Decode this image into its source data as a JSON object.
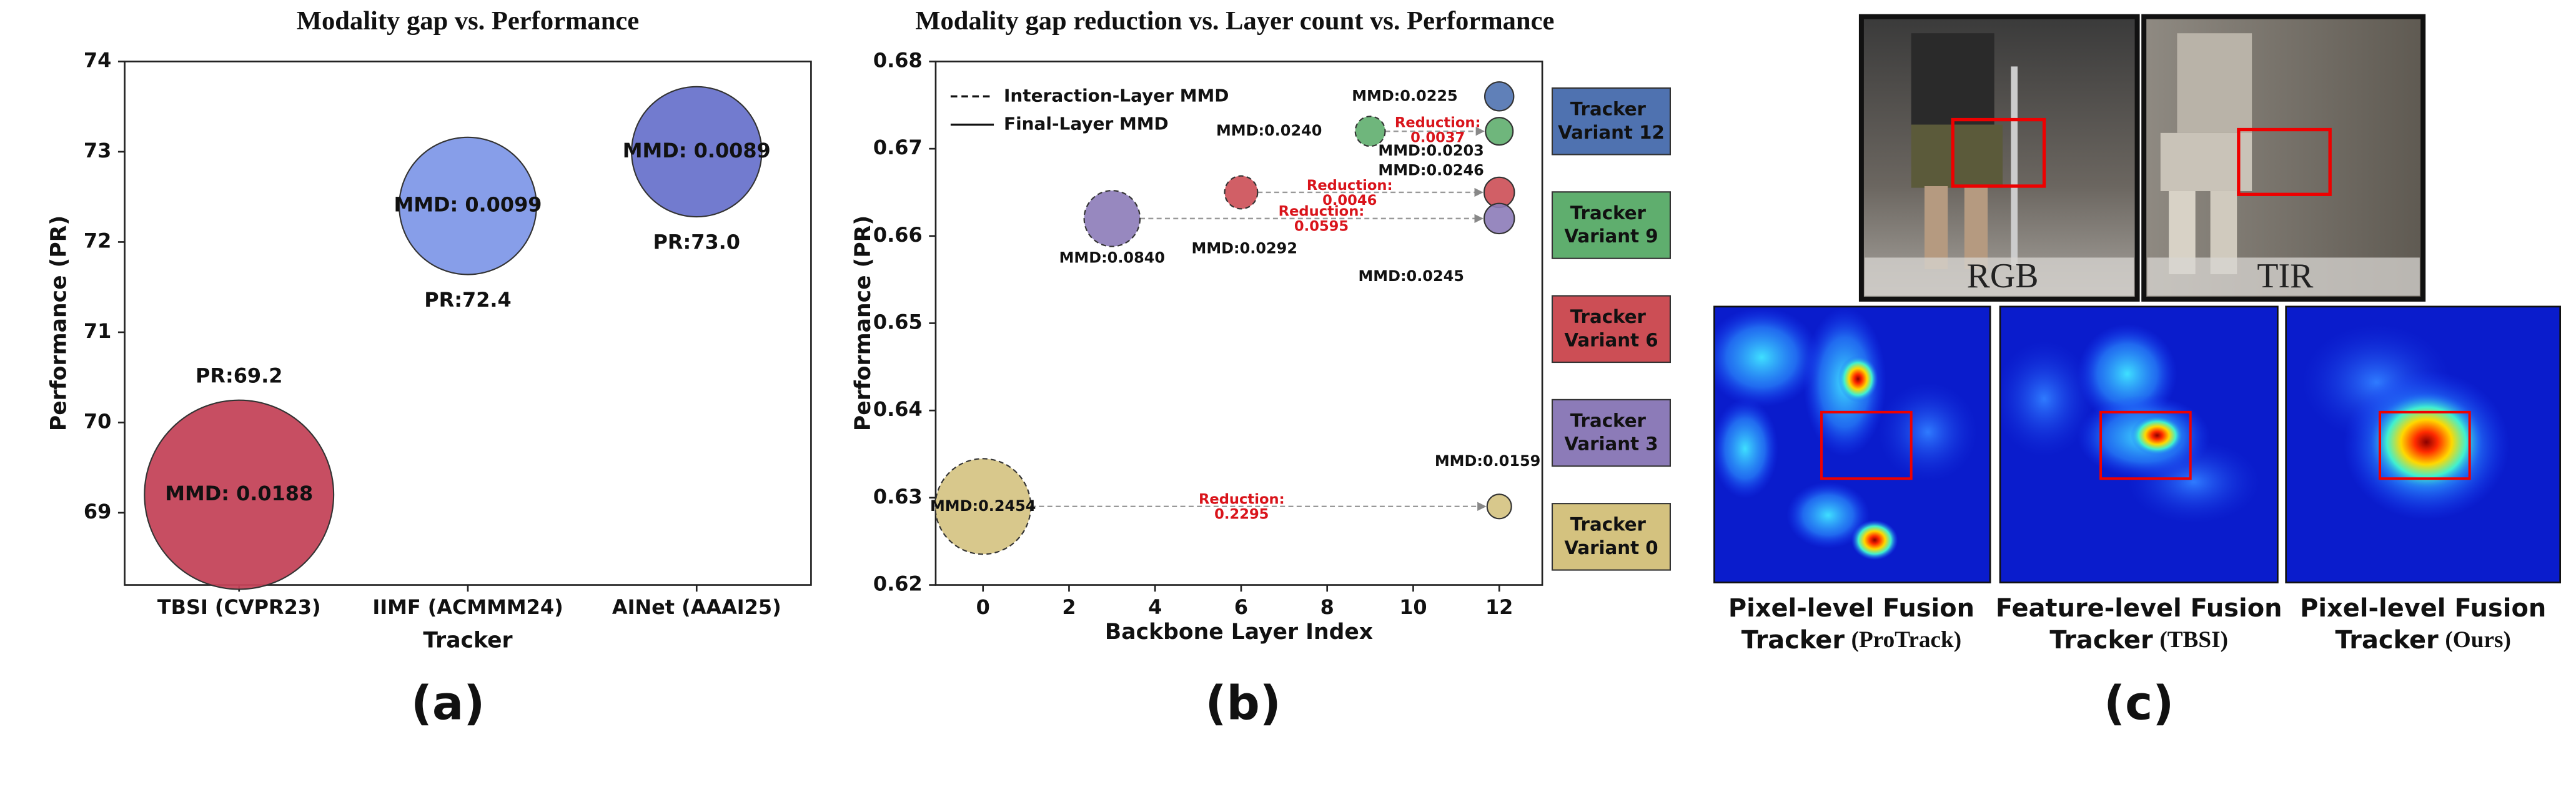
{
  "chart_data": [
    {
      "type": "bubble",
      "title": "Modality gap vs. Performance",
      "x_label": "Tracker",
      "y_label": "Performance (PR)",
      "panel_label": "(a)",
      "categories": [
        "TBSI (CVPR23)",
        "IIMF (ACMMM24)",
        "AINet (AAAI25)"
      ],
      "values": [
        69.2,
        72.4,
        73.0
      ],
      "value_labels": [
        "PR:69.2",
        "PR:72.4",
        "PR:73.0"
      ],
      "sizes": [
        0.0188,
        0.0099,
        0.0089
      ],
      "size_labels": [
        "MMD: 0.0188",
        "MMD: 0.0099",
        "MMD: 0.0089"
      ],
      "colors": [
        "#c4445a",
        "#8199e8",
        "#6a74cc"
      ],
      "ylim": [
        68.2,
        74
      ],
      "yticks": [
        69,
        70,
        71,
        72,
        73,
        74
      ],
      "grid": false
    },
    {
      "type": "scatter",
      "title": "Modality gap reduction vs. Layer count vs. Performance",
      "x_label": "Backbone Layer Index",
      "y_label": "Performance (PR)",
      "panel_label": "(b)",
      "reduction_caption": "Reduction:",
      "line_legend": [
        {
          "label": "Interaction-Layer MMD",
          "dashed": true
        },
        {
          "label": "Final-Layer MMD",
          "dashed": false
        }
      ],
      "series": [
        {
          "name": "Tracker Variant 12",
          "color": "#4f72b0",
          "x": [
            12
          ],
          "values": [
            0.676
          ],
          "sizes": [
            0.0225
          ],
          "size_labels": [
            "MMD:0.0225"
          ]
        },
        {
          "name": "Tracker Variant 9",
          "color": "#5fae6e",
          "x": [
            9,
            12
          ],
          "values": [
            0.672,
            0.672
          ],
          "sizes": [
            0.024,
            0.0203
          ],
          "size_labels": [
            "MMD:0.0240",
            "MMD:0.0203"
          ],
          "reduction": 0.0037
        },
        {
          "name": "Tracker Variant 6",
          "color": "#cc4e55",
          "x": [
            6,
            12
          ],
          "values": [
            0.665,
            0.665
          ],
          "sizes": [
            0.0292,
            0.0246
          ],
          "size_labels": [
            "MMD:0.0292",
            "MMD:0.0246"
          ],
          "reduction": 0.0046
        },
        {
          "name": "Tracker Variant 3",
          "color": "#8c7bb8",
          "x": [
            3,
            12
          ],
          "values": [
            0.662,
            0.662
          ],
          "sizes": [
            0.084,
            0.0245
          ],
          "size_labels": [
            "MMD:0.0840",
            "MMD:0.0245"
          ],
          "reduction": 0.0595
        },
        {
          "name": "Tracker Variant 0",
          "color": "#d4c27f",
          "x": [
            0,
            12
          ],
          "values": [
            0.629,
            0.629
          ],
          "sizes": [
            0.2454,
            0.0159
          ],
          "size_labels": [
            "MMD:0.2454",
            "MMD:0.0159"
          ],
          "reduction": 0.2295
        }
      ],
      "xlim": [
        -1.1,
        13
      ],
      "xticks": [
        0,
        2,
        4,
        6,
        8,
        10,
        12
      ],
      "ylim": [
        0.62,
        0.68
      ],
      "yticks": [
        0.62,
        0.63,
        0.64,
        0.65,
        0.66,
        0.67,
        0.68
      ],
      "grid": false
    }
  ],
  "panel_c": {
    "panel_label": "(c)",
    "inputs": [
      "RGB",
      "TIR"
    ],
    "heatmaps": [
      {
        "caption": "Pixel-level Fusion",
        "tracker": "Tracker",
        "method": "(ProTrack)"
      },
      {
        "caption": "Feature-level Fusion",
        "tracker": "Tracker",
        "method": "(TBSI)"
      },
      {
        "caption": "Pixel-level Fusion",
        "tracker": "Tracker",
        "method": "(Ours)"
      }
    ]
  }
}
